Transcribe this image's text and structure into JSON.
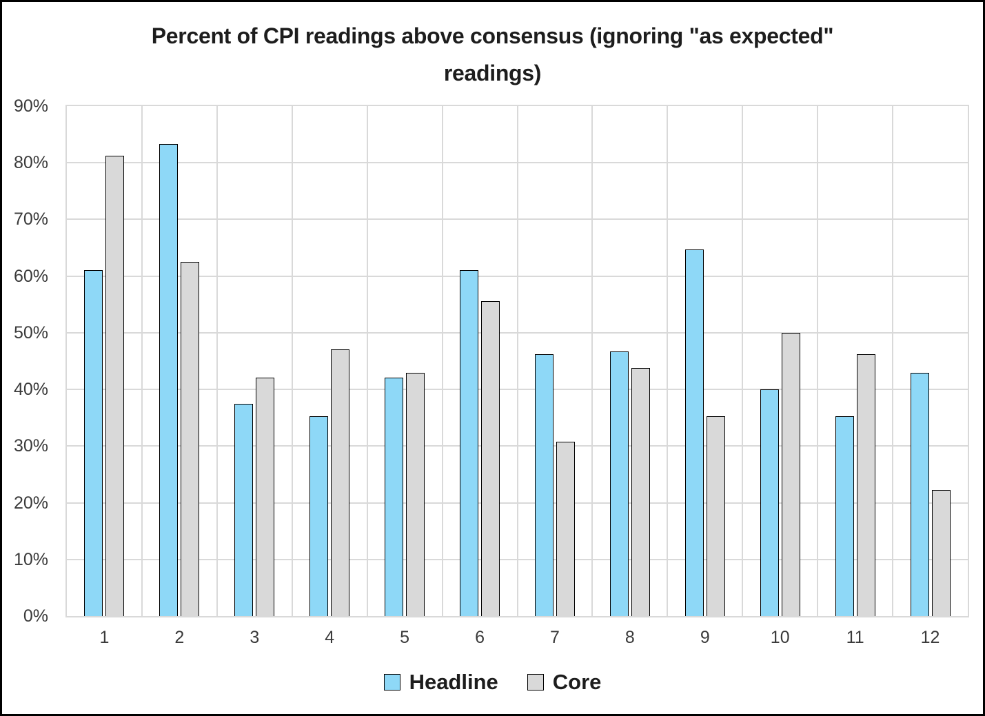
{
  "title": "Percent of CPI readings above consensus (ignoring \"as expected\" readings)",
  "colors": {
    "headline_fill": "#8ED8F7",
    "core_fill": "#D9D9D9",
    "gridline": "#D9D9D9",
    "bar_border": "#000000",
    "axis_text": "#3A3A3A",
    "title_text": "#1D1D1D",
    "frame_border": "#000000",
    "background": "#FFFFFF"
  },
  "chart_data": {
    "type": "bar",
    "title": "Percent of CPI readings above consensus (ignoring \"as expected\" readings)",
    "categories": [
      "1",
      "2",
      "3",
      "4",
      "5",
      "6",
      "7",
      "8",
      "9",
      "10",
      "11",
      "12"
    ],
    "series": [
      {
        "name": "Headline",
        "color": "#8ED8F7",
        "values": [
          61.1,
          83.3,
          37.5,
          35.3,
          42.1,
          61.1,
          46.2,
          46.7,
          64.7,
          40.0,
          35.3,
          42.9
        ]
      },
      {
        "name": "Core",
        "color": "#D9D9D9",
        "values": [
          81.3,
          62.5,
          42.1,
          47.1,
          42.9,
          55.6,
          30.8,
          43.8,
          35.3,
          50.0,
          46.2,
          22.2
        ]
      }
    ],
    "xlabel": "",
    "ylabel": "",
    "ylim": [
      0,
      90
    ],
    "ytick_step": 10,
    "ytick_suffix": "%",
    "ytick_labels": [
      "0%",
      "10%",
      "20%",
      "30%",
      "40%",
      "50%",
      "60%",
      "70%",
      "80%",
      "90%"
    ],
    "grid": "both",
    "legend_position": "bottom"
  }
}
